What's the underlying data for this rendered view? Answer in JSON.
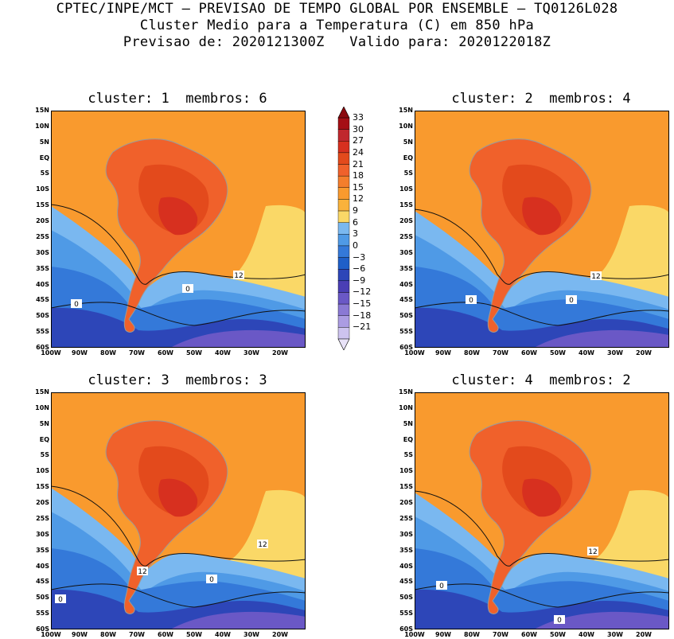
{
  "header": {
    "line1": "CPTEC/INPE/MCT — PREVISAO DE TEMPO GLOBAL POR ENSEMBLE — TQ0126L028",
    "line2": "Cluster Medio para a Temperatura (C) em 850 hPa",
    "line3": "Previsao de: 2020121300Z   Valido para: 2020122018Z"
  },
  "panels": [
    {
      "title": "cluster: 1  membros: 6",
      "contour_labels": [
        "12",
        "0",
        "0"
      ]
    },
    {
      "title": "cluster: 2  membros: 4",
      "contour_labels": [
        "12",
        "0",
        "0"
      ]
    },
    {
      "title": "cluster: 3  membros: 3",
      "contour_labels": [
        "12",
        "12",
        "0",
        "0"
      ]
    },
    {
      "title": "cluster: 4  membros: 2",
      "contour_labels": [
        "12",
        "0",
        "0"
      ]
    }
  ],
  "lat_labels": [
    "15N",
    "10N",
    "5N",
    "EQ",
    "5S",
    "10S",
    "15S",
    "20S",
    "25S",
    "30S",
    "35S",
    "40S",
    "45S",
    "50S",
    "55S",
    "60S"
  ],
  "lon_labels": [
    "100W",
    "90W",
    "80W",
    "70W",
    "60W",
    "50W",
    "40W",
    "30W",
    "20W"
  ],
  "colorbar": {
    "labels": [
      "33",
      "30",
      "27",
      "24",
      "21",
      "18",
      "15",
      "12",
      "9",
      "6",
      "3",
      "0",
      "−3",
      "−6",
      "−9",
      "−12",
      "−15",
      "−18",
      "−21"
    ],
    "colors": [
      "#a50f15",
      "#c0282d",
      "#d7301f",
      "#e34a1c",
      "#f0612b",
      "#f47e2c",
      "#f99a2e",
      "#f9b23b",
      "#fad867",
      "#7ab8f0",
      "#4f9ae6",
      "#3479d9",
      "#1f5fc8",
      "#2d46b8",
      "#4a3fb5",
      "#6a58c6",
      "#8a79d4",
      "#ab9ce2",
      "#cdc3ef"
    ]
  }
}
